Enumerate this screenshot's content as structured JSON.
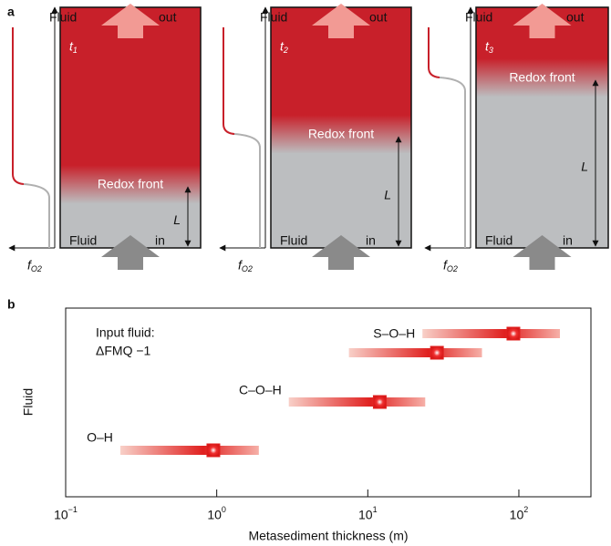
{
  "panel_a": {
    "label": "a",
    "columns": [
      {
        "time": "t",
        "time_sub": "1",
        "top_left": "Fluid",
        "top_right": "out",
        "front": "Redox front",
        "length": "L",
        "bottom_left": "Fluid",
        "bottom_right": "in",
        "axis": "f",
        "axis_sub": "O2"
      },
      {
        "time": "t",
        "time_sub": "2",
        "top_left": "Fluid",
        "top_right": "out",
        "front": "Redox front",
        "length": "L",
        "bottom_left": "Fluid",
        "bottom_right": "in",
        "axis": "f",
        "axis_sub": "O2"
      },
      {
        "time": "t",
        "time_sub": "3",
        "top_left": "Fluid",
        "top_right": "out",
        "front": "Redox front",
        "length": "L",
        "bottom_left": "Fluid",
        "bottom_right": "in",
        "axis": "f",
        "axis_sub": "O2"
      }
    ]
  },
  "chart_data": {
    "type": "range",
    "panel": "b",
    "annotation": [
      "Input fluid:",
      "ΔFMQ −1"
    ],
    "xlabel": "Metasediment thickness (m)",
    "ylabel": "Fluid",
    "log_x": true,
    "xlim": [
      0.1,
      300
    ],
    "xticks": [
      {
        "value": 0.1,
        "label": "10",
        "exponent": "−1"
      },
      {
        "value": 1,
        "label": "10",
        "exponent": "0"
      },
      {
        "value": 10,
        "label": "10",
        "exponent": "1"
      },
      {
        "value": 100,
        "label": "10",
        "exponent": "2"
      }
    ],
    "color": "#e0201f",
    "groups": [
      {
        "name": "S–O–H",
        "bars": [
          {
            "low": 23,
            "center": 92,
            "high": 187
          },
          {
            "low": 7.5,
            "center": 28.7,
            "high": 57
          }
        ]
      },
      {
        "name": "C–O–H",
        "bars": [
          {
            "low": 3.0,
            "center": 12,
            "high": 24
          }
        ]
      },
      {
        "name": "O–H",
        "bars": [
          {
            "low": 0.23,
            "center": 0.95,
            "high": 1.9
          }
        ]
      }
    ]
  }
}
